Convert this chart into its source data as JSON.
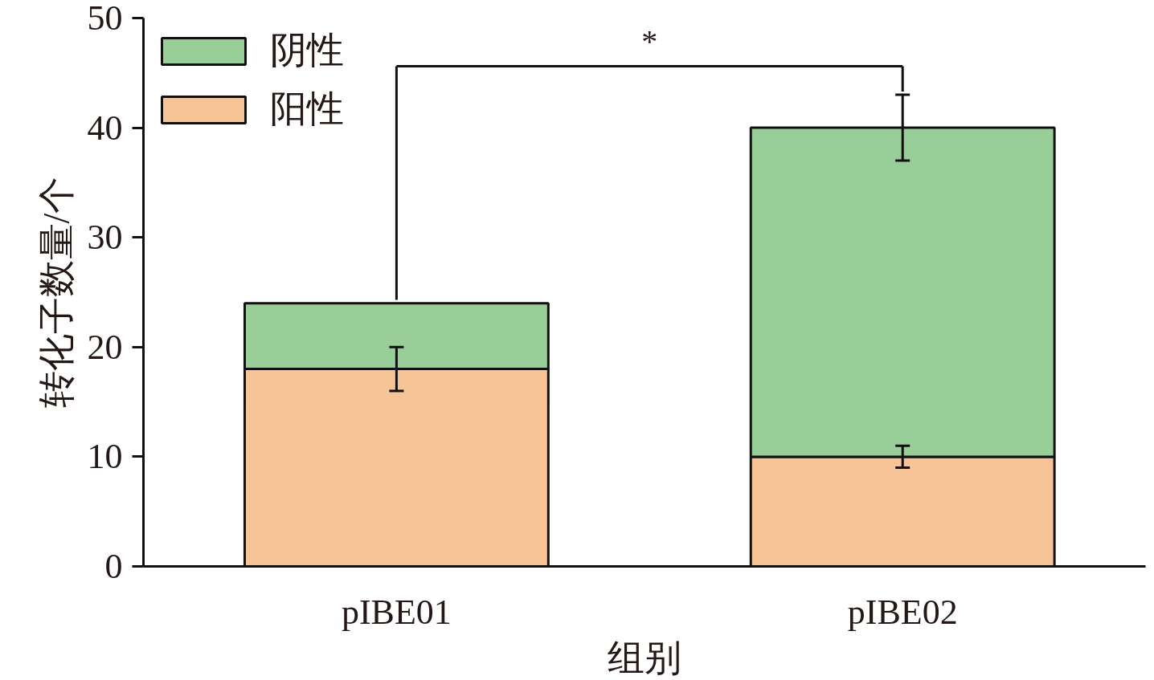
{
  "chart_data": {
    "type": "bar",
    "stacked": true,
    "xlabel": "组别",
    "ylabel": "转化子数量/个",
    "categories": [
      "pIBE01",
      "pIBE02"
    ],
    "series": [
      {
        "name": "阳性",
        "color": "#f6c497",
        "values": [
          18,
          10
        ],
        "errors": [
          2,
          1
        ]
      },
      {
        "name": "阴性",
        "color": "#9ace98",
        "values": [
          6,
          30
        ],
        "errors": [
          null,
          3
        ]
      }
    ],
    "ylim": [
      0,
      50
    ],
    "yticks": [
      0,
      10,
      20,
      30,
      40,
      50
    ],
    "grid": false,
    "legend": "top left",
    "annotations": [
      "*"
    ]
  }
}
